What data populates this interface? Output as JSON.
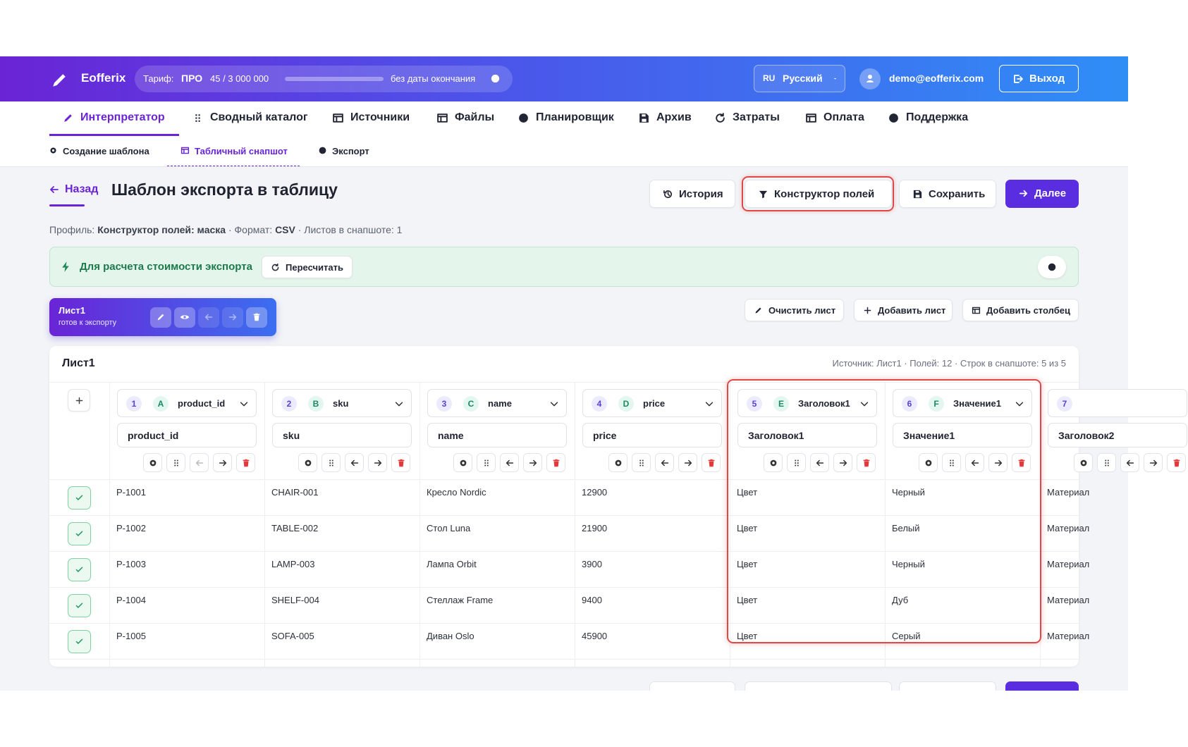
{
  "header": {
    "logo": "Eofferix",
    "tariff_label": "Тариф:",
    "plan": "ПРО",
    "usage": "45 / 3 000 000",
    "expiry": "без даты окончания",
    "lang_code": "RU",
    "lang": "Русский",
    "email": "demo@eofferix.com",
    "logout": "Выход"
  },
  "nav": {
    "tabs": [
      "Интерпретатор",
      "Сводный каталог",
      "Источники",
      "Файлы",
      "Планировщик",
      "Архив",
      "Затраты",
      "Оплата",
      "Поддержка"
    ]
  },
  "subnav": {
    "tabs": [
      "Создание шаблона",
      "Табличный снапшот",
      "Экспорт"
    ]
  },
  "page": {
    "back": "Назад",
    "title": "Шаблон экспорта в таблицу",
    "actions": [
      "История",
      "Конструктор полей",
      "Сохранить",
      "Далее"
    ],
    "profile_label": "Профиль:",
    "profile_value": "Конструктор полей: маска",
    "format_label": "· Формат:",
    "format_value": "CSV",
    "sheets_info": "· Листов в снапшоте: 1"
  },
  "banner": {
    "text": "Для расчета стоимости экспорта",
    "button": "Пересчитать"
  },
  "sheet": {
    "name": "Лист1",
    "status": "готов к экспорту",
    "actions": [
      "Очистить лист",
      "Добавить лист",
      "Добавить столбец"
    ]
  },
  "table": {
    "title": "Лист1",
    "meta": "Источник: Лист1 · Полей: 12 · Строк в снапшоте: 5 из 5",
    "columns": [
      {
        "index": 1,
        "letter": "A",
        "field": "product_id",
        "header": "product_id"
      },
      {
        "index": 2,
        "letter": "B",
        "field": "sku",
        "header": "sku"
      },
      {
        "index": 3,
        "letter": "C",
        "field": "name",
        "header": "name"
      },
      {
        "index": 4,
        "letter": "D",
        "field": "price",
        "header": "price"
      },
      {
        "index": 5,
        "letter": "E",
        "field": "Заголовок1",
        "header": "Заголовок1"
      },
      {
        "index": 6,
        "letter": "F",
        "field": "Значение1",
        "header": "Значение1"
      },
      {
        "index": 7,
        "header": "Заголовок2"
      }
    ],
    "rows": [
      [
        "P-1001",
        "CHAIR-001",
        "Кресло Nordic",
        12900,
        "Цвет",
        "Черный",
        "Материал"
      ],
      [
        "P-1002",
        "TABLE-002",
        "Стол Luna",
        21900,
        "Цвет",
        "Белый",
        "Материал"
      ],
      [
        "P-1003",
        "LAMP-003",
        "Лампа Orbit",
        3900,
        "Цвет",
        "Черный",
        "Материал"
      ],
      [
        "P-1004",
        "SHELF-004",
        "Стеллаж Frame",
        9400,
        "Цвет",
        "Дуб",
        "Материал"
      ],
      [
        "P-1005",
        "SOFA-005",
        "Диван Oslo",
        45900,
        "Цвет",
        "Серый",
        "Материал"
      ]
    ]
  }
}
